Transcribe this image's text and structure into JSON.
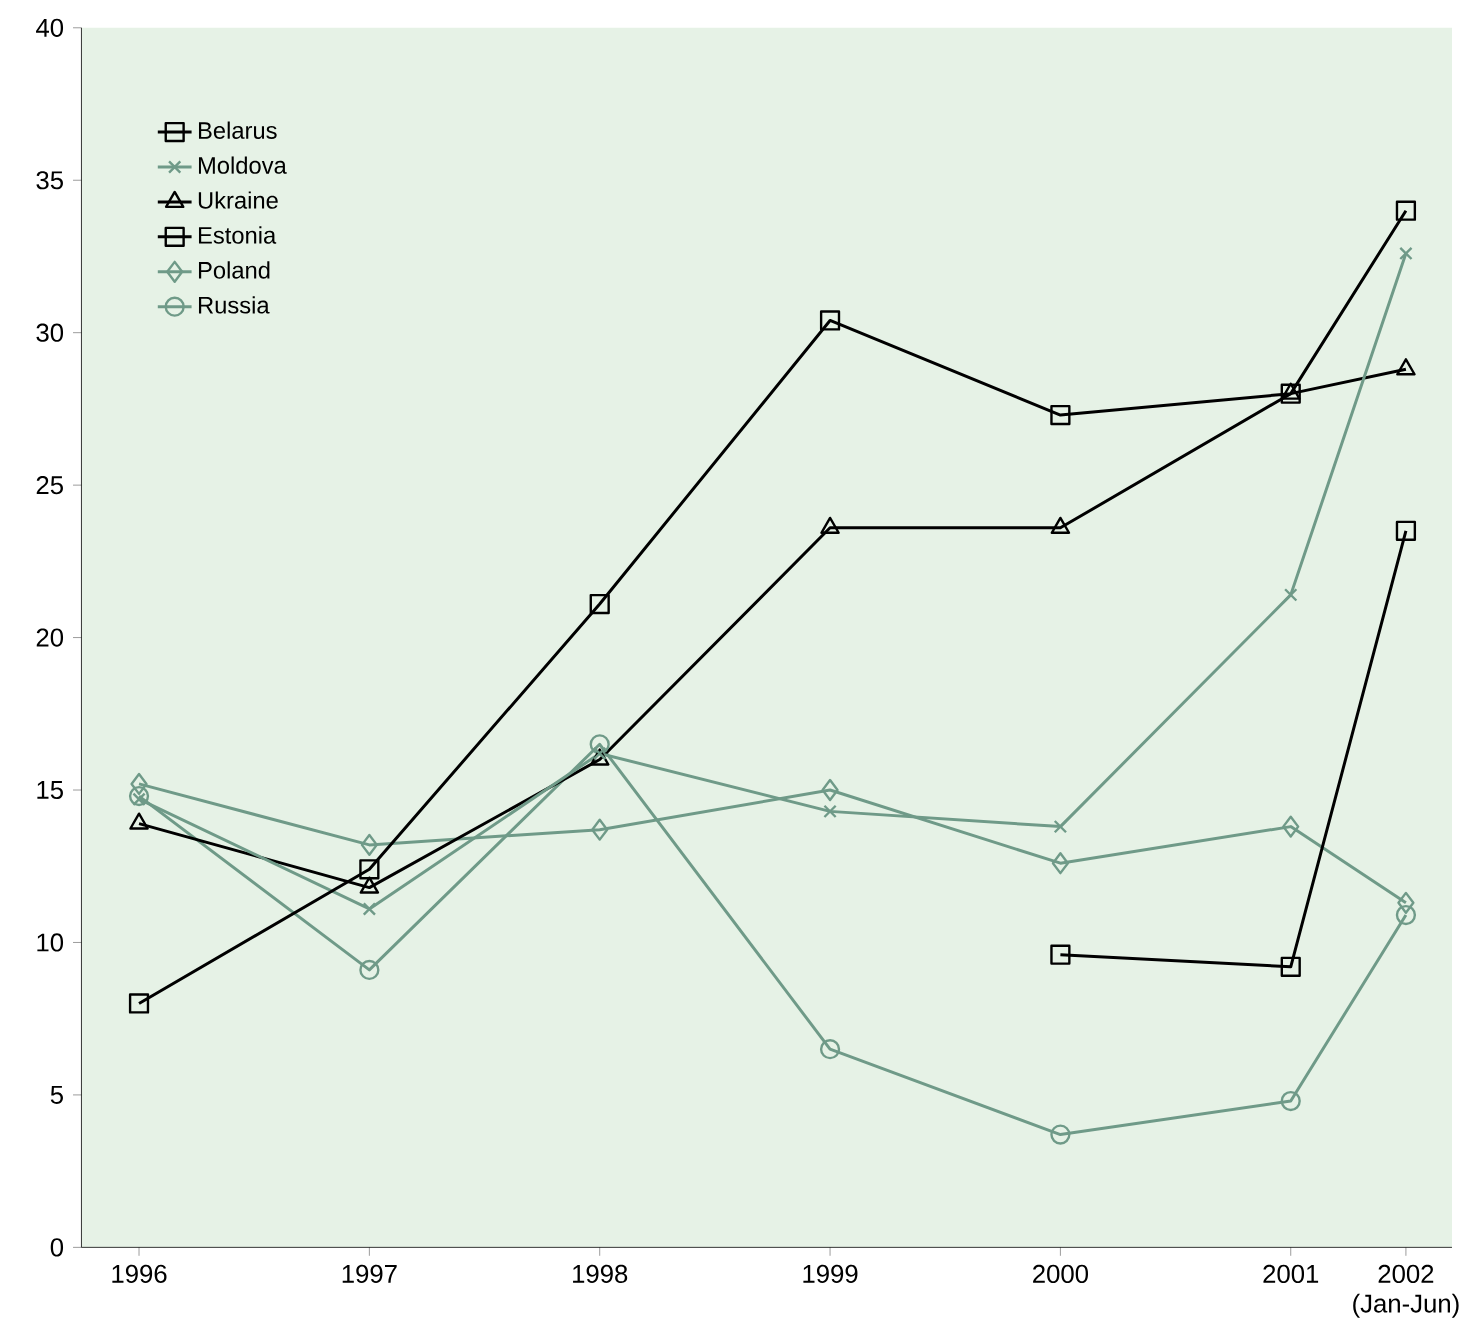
{
  "chart_data": {
    "type": "line",
    "x": [
      1996,
      1997,
      1998,
      1999,
      2000,
      2001,
      2001.5
    ],
    "xlim": [
      1995.75,
      2001.7
    ],
    "xticks": [
      1996,
      1997,
      1998,
      1999,
      2000,
      2001,
      {
        "value": 2001.5,
        "label": "2002 (Jan-Jun)"
      }
    ],
    "ylim": [
      0,
      40
    ],
    "yticks": [
      0,
      5,
      10,
      15,
      20,
      25,
      30,
      35,
      40
    ],
    "legend": "top left",
    "grid": false,
    "series": [
      {
        "name": "Belarus",
        "color": "#000000",
        "marker": "square",
        "values": [
          8.0,
          12.4,
          21.1,
          30.4,
          27.3,
          28.0,
          34.0
        ]
      },
      {
        "name": "Moldova",
        "color": "#6f9a88",
        "marker": "cross",
        "values": [
          14.7,
          11.1,
          16.2,
          14.3,
          13.8,
          21.4,
          32.6
        ]
      },
      {
        "name": "Ukraine",
        "color": "#000000",
        "marker": "triangle",
        "values": [
          13.9,
          11.8,
          16.0,
          23.6,
          23.6,
          28.0,
          28.8
        ]
      },
      {
        "name": "Estonia",
        "color": "#000000",
        "marker": "square",
        "values": [
          null,
          null,
          null,
          null,
          9.6,
          9.2,
          23.5
        ]
      },
      {
        "name": "Poland",
        "color": "#6f9a88",
        "marker": "diamond",
        "values": [
          15.2,
          13.2,
          13.7,
          15.0,
          12.6,
          13.8,
          11.3
        ]
      },
      {
        "name": "Russia",
        "color": "#6f9a88",
        "marker": "circle",
        "values": [
          14.8,
          9.1,
          16.5,
          6.5,
          3.7,
          4.8,
          10.9
        ]
      }
    ]
  }
}
